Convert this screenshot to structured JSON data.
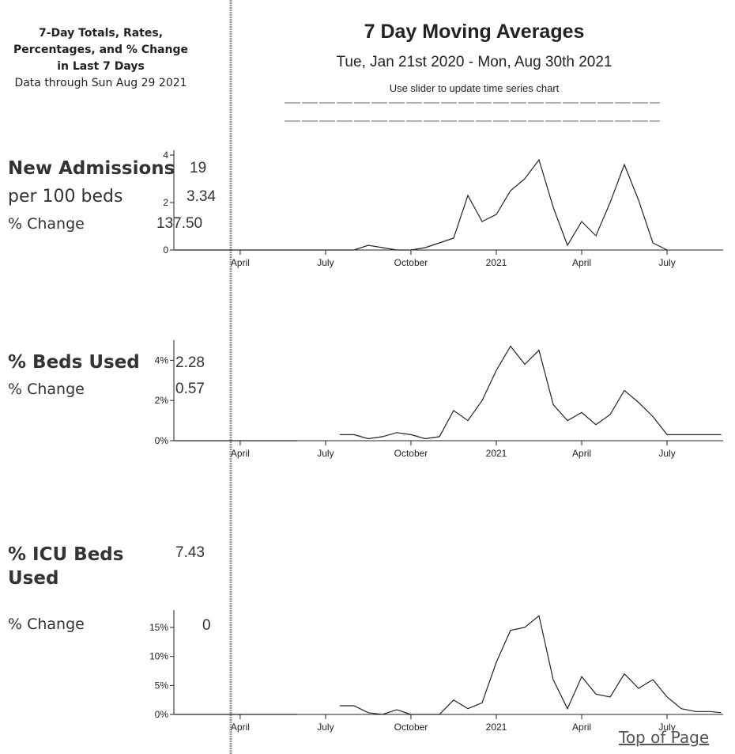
{
  "header": {
    "left_title": "7-Day Totals, Rates, Percentages, and % Change in Last 7 Days",
    "left_note": "Data through Sun Aug 29 2021",
    "title": "7 Day Moving Averages",
    "subtitle": "Tue, Jan 21st 2020 - Mon, Aug 30th 2021",
    "slider_hint": "Use slider to update time series chart"
  },
  "panels": [
    {
      "title": "New Admissions",
      "value": "19",
      "rows": [
        {
          "label": "per 100 beds",
          "value": "3.34"
        },
        {
          "label": "% Change",
          "value": "137.50"
        }
      ]
    },
    {
      "title": "% Beds Used",
      "value": "2.28",
      "rows": [
        {
          "label": "% Change",
          "value": "0.57"
        }
      ]
    },
    {
      "title": "% ICU Beds Used",
      "value": "7.43",
      "rows": [
        {
          "label": "% Change",
          "value": "0"
        }
      ]
    }
  ],
  "footer": {
    "link": "Top of Page"
  },
  "chart_data": [
    {
      "type": "line",
      "color": "#222",
      "x": [
        0.7,
        2,
        3,
        4,
        5,
        6,
        6.5,
        7,
        7.5,
        8,
        8.5,
        9,
        9.5,
        10,
        10.5,
        11,
        11.5,
        12,
        12.5,
        13,
        13.5,
        14,
        14.5,
        15,
        15.5,
        16,
        16.5,
        17,
        17.5,
        18,
        18.5,
        19,
        19.5,
        19.9
      ],
      "values": [
        0,
        0,
        0,
        0,
        0,
        0,
        0,
        0,
        0.2,
        0.1,
        0,
        0,
        0.1,
        0.3,
        0.5,
        2.3,
        1.2,
        1.5,
        2.5,
        3.0,
        3.8,
        1.8,
        0.2,
        1.2,
        0.6,
        2.0,
        3.6,
        2.1,
        0.3,
        0,
        null,
        null,
        null,
        null
      ],
      "xlim": [
        0.67,
        19.97
      ],
      "xticks": [
        {
          "value": 3,
          "label": "April"
        },
        {
          "value": 6,
          "label": "July"
        },
        {
          "value": 9,
          "label": "October"
        },
        {
          "value": 12,
          "label": "2021"
        },
        {
          "value": 15,
          "label": "April"
        },
        {
          "value": 18,
          "label": "July"
        }
      ],
      "ylim": [
        0,
        4.2
      ],
      "yticks": [
        0,
        2,
        4
      ]
    },
    {
      "type": "line",
      "color": "#222",
      "x": [
        0.7,
        2,
        3,
        4,
        5,
        6,
        6.5,
        7,
        7.5,
        8,
        8.5,
        9,
        9.5,
        10,
        10.5,
        11,
        11.5,
        12,
        12.5,
        13,
        13.5,
        14,
        14.5,
        15,
        15.5,
        16,
        16.5,
        17,
        17.5,
        18,
        18.5,
        19,
        19.5,
        19.9
      ],
      "values": [
        0,
        0,
        0,
        0,
        0,
        null,
        0.3,
        0.3,
        0.1,
        0.2,
        0.4,
        0.3,
        0.1,
        0.2,
        1.5,
        1.0,
        2.0,
        3.5,
        4.7,
        3.8,
        4.5,
        1.8,
        1.0,
        1.4,
        0.8,
        1.3,
        2.5,
        1.9,
        1.2,
        0.3,
        0.3,
        0.3,
        0.3,
        0.3
      ],
      "xlim": [
        0.67,
        19.97
      ],
      "xticks": [
        {
          "value": 3,
          "label": "April"
        },
        {
          "value": 6,
          "label": "July"
        },
        {
          "value": 9,
          "label": "October"
        },
        {
          "value": 12,
          "label": "2021"
        },
        {
          "value": 15,
          "label": "April"
        },
        {
          "value": 18,
          "label": "July"
        }
      ],
      "ylim": [
        0,
        5
      ],
      "yticks": [
        {
          "value": 0,
          "label": "0%"
        },
        {
          "value": 2,
          "label": "2%"
        },
        {
          "value": 4,
          "label": "4%"
        }
      ]
    },
    {
      "type": "line",
      "color": "#222",
      "x": [
        0.7,
        2,
        3,
        4,
        5,
        6,
        6.5,
        7,
        7.5,
        8,
        8.5,
        9,
        9.5,
        10,
        10.5,
        11,
        11.5,
        12,
        12.5,
        13,
        13.5,
        14,
        14.5,
        15,
        15.5,
        16,
        16.5,
        17,
        17.5,
        18,
        18.5,
        19,
        19.5,
        19.9
      ],
      "values": [
        0,
        0,
        0,
        0,
        0,
        null,
        1.5,
        1.5,
        0.3,
        0,
        0.8,
        0,
        0,
        0,
        2.5,
        1,
        2,
        9,
        14.5,
        15,
        17,
        6,
        1,
        6.5,
        3.5,
        3,
        7,
        4.5,
        6,
        3,
        1,
        0.5,
        0.5,
        0.3
      ],
      "xlim": [
        0.67,
        19.97
      ],
      "xticks": [
        {
          "value": 3,
          "label": "April"
        },
        {
          "value": 6,
          "label": "July"
        },
        {
          "value": 9,
          "label": "October"
        },
        {
          "value": 12,
          "label": "2021"
        },
        {
          "value": 15,
          "label": "April"
        },
        {
          "value": 18,
          "label": "July"
        }
      ],
      "ylim": [
        0,
        18
      ],
      "yticks": [
        {
          "value": 0,
          "label": "0%"
        },
        {
          "value": 5,
          "label": "5%"
        },
        {
          "value": 10,
          "label": "10%"
        },
        {
          "value": 15,
          "label": "15%"
        }
      ]
    }
  ]
}
